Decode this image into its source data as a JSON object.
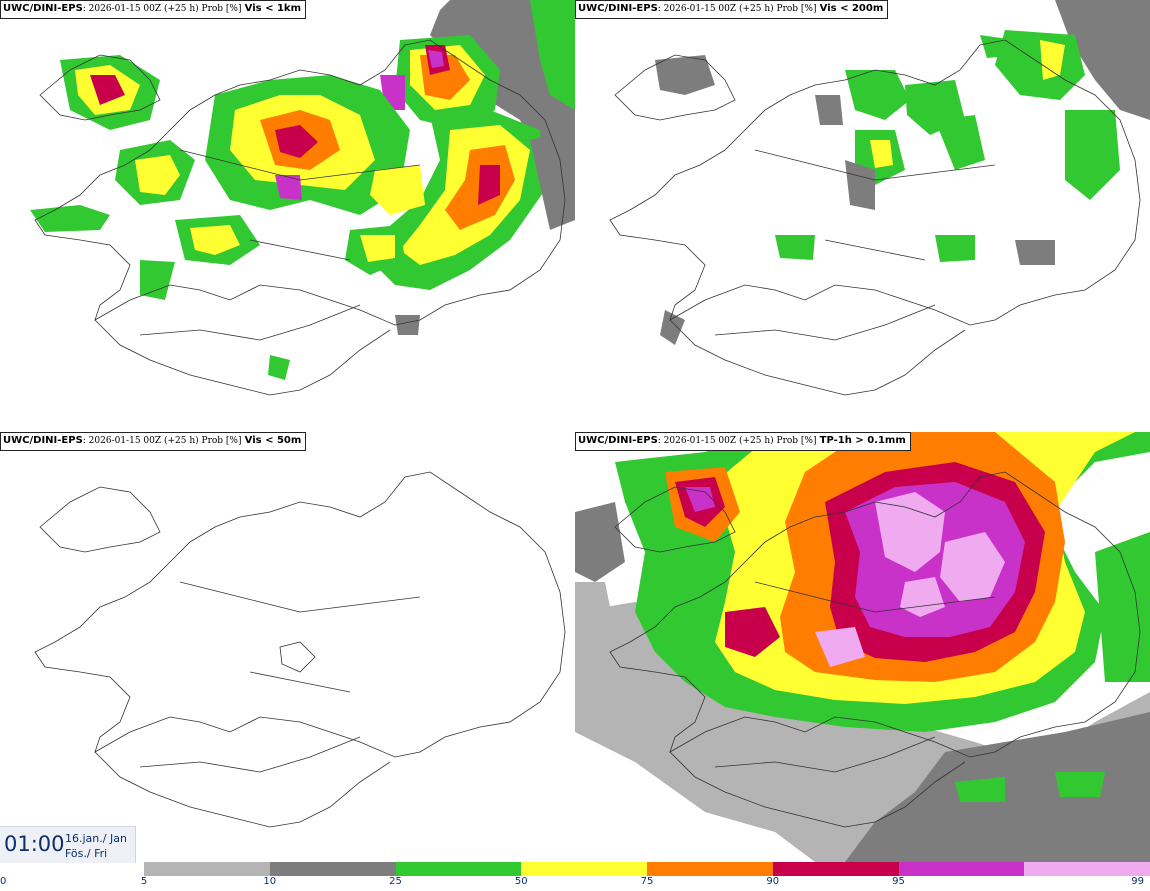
{
  "panels": [
    {
      "model": "UWC/DINI-EPS",
      "meta": ": 2026-01-15 00Z (+25 h) Prob [%]",
      "param": "Vis < 1km"
    },
    {
      "model": "UWC/DINI-EPS",
      "meta": ": 2026-01-15 00Z (+25 h) Prob [%]",
      "param": "Vis < 200m"
    },
    {
      "model": "UWC/DINI-EPS",
      "meta": ": 2026-01-15 00Z (+25 h) Prob [%]",
      "param": "Vis < 50m"
    },
    {
      "model": "UWC/DINI-EPS",
      "meta": ": 2026-01-15 00Z (+25 h) Prob [%]",
      "param": "TP-1h > 0.1mm"
    }
  ],
  "time": {
    "clock": "01:00",
    "date_line1": "16.jan./ Jan",
    "date_line2": "Fös./ Fri"
  },
  "legend": {
    "ticks": [
      "0",
      "5",
      "10",
      "25",
      "50",
      "75",
      "90",
      "95",
      "99"
    ],
    "colors": [
      "#b4b4b4",
      "#7d7d7d",
      "#32c832",
      "#ffff32",
      "#ff7d00",
      "#c8004b",
      "#c832c8",
      "#f0aaf0"
    ]
  },
  "colors": {
    "gray_light": "#b4b4b4",
    "gray_dark": "#7d7d7d",
    "green": "#32c832",
    "yellow": "#ffff32",
    "orange": "#ff7d00",
    "crimson": "#c8004b",
    "magenta": "#c832c8",
    "pink": "#f0aaf0",
    "coast": "#333333"
  }
}
